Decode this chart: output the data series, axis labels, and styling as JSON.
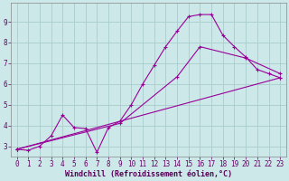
{
  "title": "",
  "xlabel": "Windchill (Refroidissement éolien,°C)",
  "ylabel": "",
  "bg_color": "#cce8e8",
  "grid_color": "#aacccc",
  "line_color": "#990099",
  "xlim": [
    -0.5,
    23.5
  ],
  "ylim": [
    2.5,
    9.9
  ],
  "xticks": [
    0,
    1,
    2,
    3,
    4,
    5,
    6,
    7,
    8,
    9,
    10,
    11,
    12,
    13,
    14,
    15,
    16,
    17,
    18,
    19,
    20,
    21,
    22,
    23
  ],
  "yticks": [
    3,
    4,
    5,
    6,
    7,
    8,
    9
  ],
  "line1_x": [
    0,
    1,
    2,
    3,
    4,
    5,
    6,
    7,
    8,
    9,
    10,
    11,
    12,
    13,
    14,
    15,
    16,
    17,
    18,
    19,
    20,
    21,
    22,
    23
  ],
  "line1_y": [
    2.85,
    2.8,
    3.0,
    3.5,
    4.5,
    3.9,
    3.85,
    2.7,
    3.9,
    4.2,
    5.0,
    6.0,
    6.9,
    7.8,
    8.55,
    9.25,
    9.35,
    9.35,
    8.35,
    7.8,
    7.3,
    6.7,
    6.5,
    6.3
  ],
  "line2_x": [
    0,
    23
  ],
  "line2_y": [
    2.85,
    6.3
  ],
  "line3_x": [
    0,
    9,
    14,
    16,
    20,
    23
  ],
  "line3_y": [
    2.85,
    4.1,
    6.35,
    7.8,
    7.25,
    6.5
  ],
  "tick_fontsize": 5.5,
  "xlabel_fontsize": 6.0
}
